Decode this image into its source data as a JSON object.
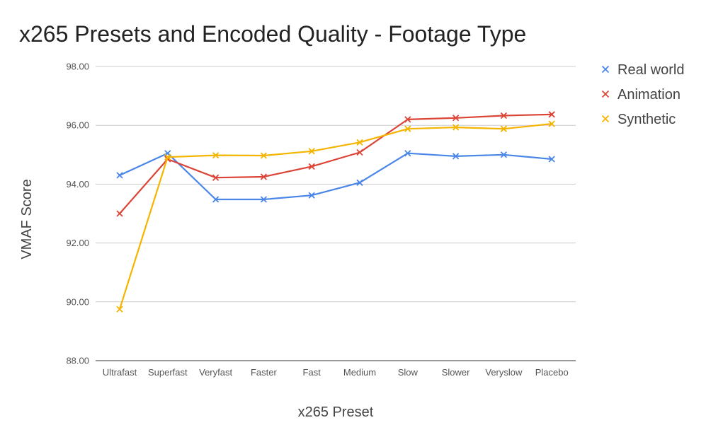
{
  "chart_data": {
    "type": "line",
    "title": "x265 Presets and Encoded Quality - Footage Type",
    "xlabel": "x265 Preset",
    "ylabel": "VMAF Score",
    "categories": [
      "Ultrafast",
      "Superfast",
      "Veryfast",
      "Faster",
      "Fast",
      "Medium",
      "Slow",
      "Slower",
      "Veryslow",
      "Placebo"
    ],
    "ylim": [
      88,
      98
    ],
    "yticks": [
      "88.00",
      "90.00",
      "92.00",
      "94.00",
      "96.00",
      "98.00"
    ],
    "grid": true,
    "legend_position": "right",
    "series": [
      {
        "name": "Real world",
        "color": "#4a86e8",
        "values": [
          94.3,
          95.05,
          93.48,
          93.48,
          93.62,
          94.05,
          95.05,
          94.95,
          95.0,
          94.85
        ]
      },
      {
        "name": "Animation",
        "color": "#db4437",
        "values": [
          93.0,
          94.85,
          94.22,
          94.25,
          94.6,
          95.08,
          96.2,
          96.25,
          96.33,
          96.37
        ]
      },
      {
        "name": "Synthetic",
        "color": "#f4b400",
        "values": [
          89.75,
          94.92,
          94.98,
          94.97,
          95.12,
          95.42,
          95.88,
          95.93,
          95.88,
          96.05
        ]
      }
    ]
  }
}
